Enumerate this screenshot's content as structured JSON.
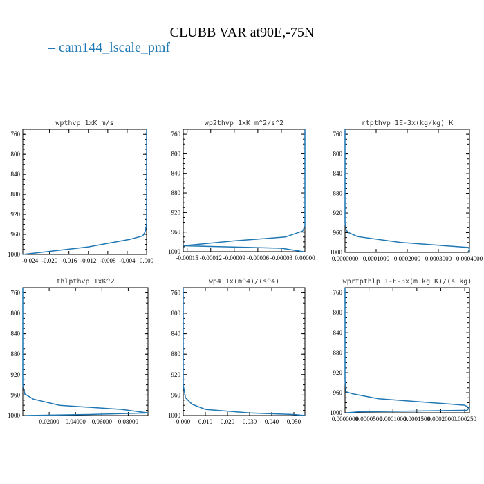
{
  "figure": {
    "title": "CLUBB VAR at90E,-75N",
    "legend": [
      {
        "label": "cam144_lscale_pmf",
        "color": "#1f77b4",
        "marker": "–"
      }
    ]
  },
  "chart_data": [
    {
      "type": "line",
      "title": "wpthvp   1xK m/s",
      "xlim": [
        -0.0255,
        0.0
      ],
      "ylim": [
        1000,
        750
      ],
      "x_ticks": [
        "-0.024",
        "-0.020",
        "-0.016",
        "-0.012",
        "-0.008",
        "-0.004",
        "0.000"
      ],
      "x_tick_values": [
        -0.024,
        -0.02,
        -0.016,
        -0.012,
        -0.008,
        -0.004,
        0.0
      ],
      "y_ticks": [
        "760",
        "800",
        "840",
        "880",
        "920",
        "960",
        "1000"
      ],
      "y_tick_values": [
        760,
        800,
        840,
        880,
        920,
        960,
        1000
      ],
      "series": [
        {
          "name": "cam144_lscale_pmf",
          "x": [
            0.0,
            0.0,
            0.0,
            -0.0003,
            -0.0008,
            -0.0035,
            -0.012,
            -0.0255
          ],
          "y": [
            750,
            880,
            940,
            955,
            963,
            970,
            985,
            1000
          ]
        }
      ]
    },
    {
      "type": "line",
      "title": "wp2thvp   1xK m^2/s^2",
      "xlim": [
        -0.000155,
        0.0
      ],
      "ylim": [
        1000,
        750
      ],
      "x_ticks": [
        "-0.00015",
        "-0.00012",
        "-0.00009",
        "-0.00006",
        "-0.00003",
        "0.00000"
      ],
      "x_tick_values": [
        -0.00015,
        -0.00012,
        -9e-05,
        -6e-05,
        -3e-05,
        0.0
      ],
      "y_ticks": [
        "760",
        "800",
        "840",
        "880",
        "920",
        "960",
        "1000"
      ],
      "y_tick_values": [
        760,
        800,
        840,
        880,
        920,
        960,
        1000
      ],
      "series": [
        {
          "name": "cam144_lscale_pmf",
          "x": [
            0.0,
            0.0,
            0.0,
            -3e-06,
            -2.5e-05,
            -9e-05,
            -0.000155,
            -3e-05,
            -2e-06
          ],
          "y": [
            750,
            900,
            948,
            958,
            970,
            978,
            988,
            993,
            1000
          ]
        }
      ]
    },
    {
      "type": "line",
      "title": "rtpthvp   1E-3x(kg/kg) K",
      "xlim": [
        0.0,
        0.0004
      ],
      "ylim": [
        1000,
        750
      ],
      "x_ticks": [
        "0.0000000",
        "0.0001000",
        "0.0002000",
        "0.0003000",
        "0.0004000"
      ],
      "x_tick_values": [
        0.0,
        0.0001,
        0.0002,
        0.0003,
        0.0004
      ],
      "y_ticks": [
        "760",
        "800",
        "840",
        "880",
        "920",
        "960",
        "1000"
      ],
      "y_tick_values": [
        760,
        800,
        840,
        880,
        920,
        960,
        1000
      ],
      "series": [
        {
          "name": "cam144_lscale_pmf",
          "x": [
            0.0,
            0.0,
            4e-06,
            1.2e-05,
            4e-05,
            0.00018,
            0.000395,
            0.0004,
            0.000395
          ],
          "y": [
            750,
            940,
            955,
            960,
            968,
            980,
            990,
            993,
            1000
          ]
        }
      ]
    },
    {
      "type": "line",
      "title": "thlpthvp   1xK^2",
      "xlim": [
        0.0,
        0.095
      ],
      "ylim": [
        1000,
        750
      ],
      "x_ticks": [
        "0.02000",
        "0.04000",
        "0.06000",
        "0.08000"
      ],
      "x_tick_values": [
        0.02,
        0.04,
        0.06,
        0.08
      ],
      "y_ticks": [
        "760",
        "800",
        "840",
        "880",
        "920",
        "960",
        "1000"
      ],
      "y_tick_values": [
        760,
        800,
        840,
        880,
        920,
        960,
        1000
      ],
      "series": [
        {
          "name": "cam144_lscale_pmf",
          "x": [
            0.0,
            0.0,
            0.0015,
            0.008,
            0.028,
            0.075,
            0.095,
            0.05,
            0.002
          ],
          "y": [
            750,
            940,
            958,
            968,
            980,
            988,
            995,
            998,
            1000
          ]
        }
      ]
    },
    {
      "type": "line",
      "title": "wp4   1x(m^4)/(s^4)",
      "xlim": [
        0.0,
        0.055
      ],
      "ylim": [
        1000,
        750
      ],
      "x_ticks": [
        "0.000",
        "0.010",
        "0.020",
        "0.030",
        "0.040",
        "0.050"
      ],
      "x_tick_values": [
        0.0,
        0.01,
        0.02,
        0.03,
        0.04,
        0.05
      ],
      "y_ticks": [
        "760",
        "800",
        "840",
        "880",
        "920",
        "960",
        "1000"
      ],
      "y_tick_values": [
        760,
        800,
        840,
        880,
        920,
        960,
        1000
      ],
      "series": [
        {
          "name": "cam144_lscale_pmf",
          "x": [
            0.0,
            0.0,
            0.001,
            0.004,
            0.01,
            0.03,
            0.05,
            0.055
          ],
          "y": [
            750,
            940,
            965,
            978,
            988,
            995,
            998,
            1000
          ]
        }
      ]
    },
    {
      "type": "line",
      "title": "wprtpthlp   1-E-3x(m kg K)/(s kg)",
      "xlim": [
        0.0,
        0.00026
      ],
      "ylim": [
        1000,
        750
      ],
      "x_ticks": [
        "0.0000000",
        "0.0000500",
        "0.0001000",
        "0.0001500",
        "0.0002000",
        "0.000250"
      ],
      "x_tick_values": [
        0.0,
        5e-05,
        0.0001,
        0.00015,
        0.0002,
        0.00025
      ],
      "y_ticks": [
        "760",
        "800",
        "840",
        "880",
        "920",
        "960",
        "1000"
      ],
      "y_tick_values": [
        760,
        800,
        840,
        880,
        920,
        960,
        1000
      ],
      "series": [
        {
          "name": "cam144_lscale_pmf",
          "x": [
            0.0,
            0.0,
            2e-06,
            1.5e-05,
            7e-05,
            0.00025,
            0.00026,
            0.000255,
            3e-05,
            4e-06
          ],
          "y": [
            750,
            935,
            958,
            962,
            972,
            985,
            990,
            995,
            998,
            1000
          ]
        }
      ]
    }
  ]
}
